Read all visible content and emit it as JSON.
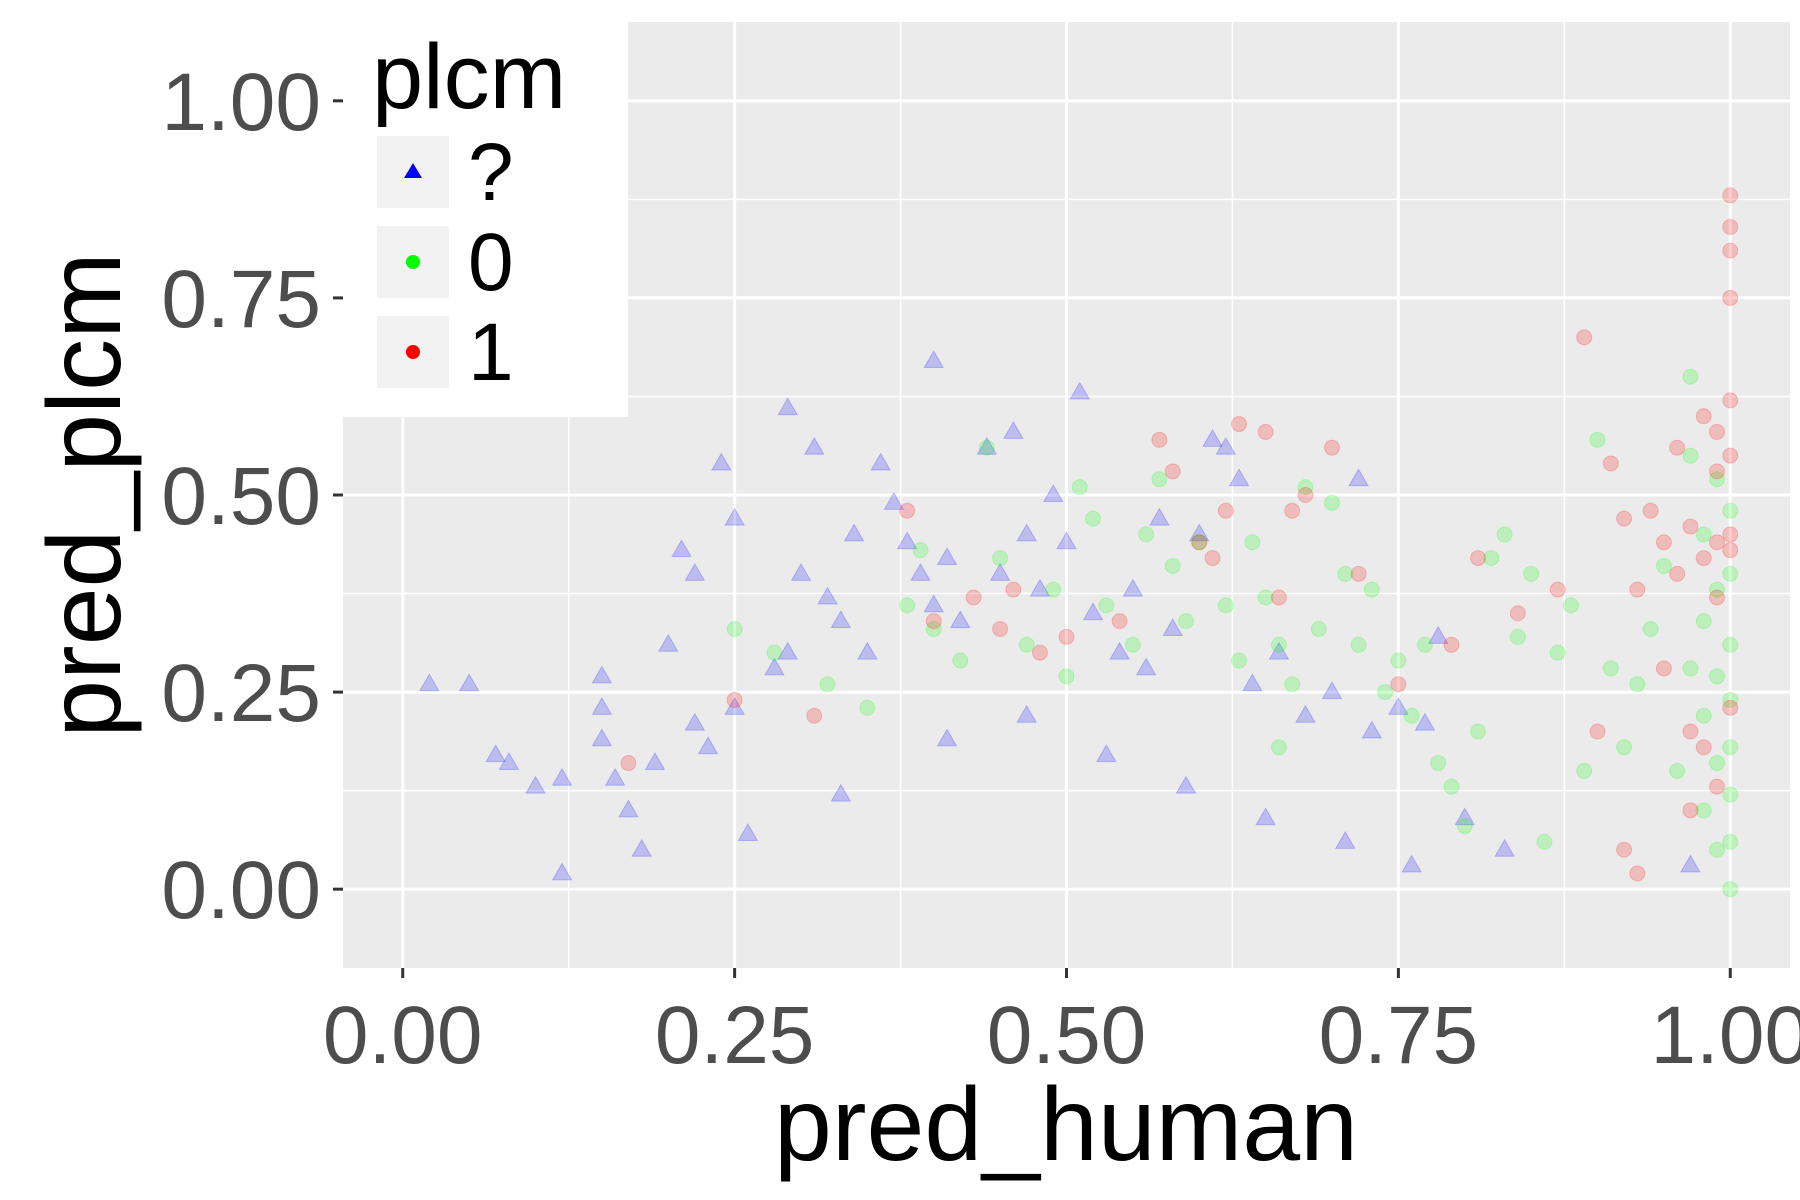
{
  "chart_data": {
    "type": "scatter",
    "title": "",
    "xlabel": "pred_human",
    "ylabel": "pred_plcm",
    "xlim": [
      -0.045,
      1.045
    ],
    "ylim": [
      -0.1,
      1.1
    ],
    "x_ticks": [
      0.0,
      0.25,
      0.5,
      0.75,
      1.0
    ],
    "y_ticks": [
      0.0,
      0.25,
      0.5,
      0.75,
      1.0
    ],
    "x_tick_labels": [
      "0.00",
      "0.25",
      "0.50",
      "0.75",
      "1.00"
    ],
    "y_tick_labels": [
      "0.00",
      "0.25",
      "0.50",
      "0.75",
      "1.00"
    ],
    "grid": true,
    "legend": {
      "title": "plcm",
      "position": "top-left",
      "entries": [
        {
          "label": "?",
          "shape": "triangle",
          "color": "#0000ff"
        },
        {
          "label": "0",
          "shape": "circle",
          "color": "#00ff00"
        },
        {
          "label": "1",
          "shape": "circle",
          "color": "#ff0000"
        }
      ]
    },
    "colors": {
      "panel": "#ebebeb",
      "grid_major": "#ffffff",
      "axis_text": "#4d4d4d",
      "title_text": "#000000"
    },
    "point_alpha": 0.2,
    "series": [
      {
        "name": "?",
        "shape": "triangle",
        "color": "#0000ff",
        "points": [
          [
            0.02,
            0.26
          ],
          [
            0.05,
            0.26
          ],
          [
            0.07,
            0.17
          ],
          [
            0.08,
            0.16
          ],
          [
            0.1,
            0.13
          ],
          [
            0.12,
            0.14
          ],
          [
            0.15,
            0.27
          ],
          [
            0.15,
            0.23
          ],
          [
            0.15,
            0.19
          ],
          [
            0.16,
            0.14
          ],
          [
            0.17,
            0.1
          ],
          [
            0.19,
            0.16
          ],
          [
            0.2,
            0.31
          ],
          [
            0.21,
            0.43
          ],
          [
            0.22,
            0.4
          ],
          [
            0.22,
            0.21
          ],
          [
            0.23,
            0.18
          ],
          [
            0.24,
            0.54
          ],
          [
            0.25,
            0.47
          ],
          [
            0.25,
            0.23
          ],
          [
            0.28,
            0.28
          ],
          [
            0.29,
            0.61
          ],
          [
            0.29,
            0.3
          ],
          [
            0.3,
            0.4
          ],
          [
            0.31,
            0.56
          ],
          [
            0.32,
            0.37
          ],
          [
            0.33,
            0.34
          ],
          [
            0.34,
            0.45
          ],
          [
            0.35,
            0.3
          ],
          [
            0.36,
            0.54
          ],
          [
            0.37,
            0.49
          ],
          [
            0.38,
            0.44
          ],
          [
            0.39,
            0.4
          ],
          [
            0.4,
            0.67
          ],
          [
            0.4,
            0.36
          ],
          [
            0.41,
            0.42
          ],
          [
            0.42,
            0.34
          ],
          [
            0.44,
            0.56
          ],
          [
            0.45,
            0.4
          ],
          [
            0.46,
            0.58
          ],
          [
            0.47,
            0.45
          ],
          [
            0.48,
            0.38
          ],
          [
            0.49,
            0.5
          ],
          [
            0.5,
            0.44
          ],
          [
            0.51,
            0.63
          ],
          [
            0.52,
            0.35
          ],
          [
            0.54,
            0.3
          ],
          [
            0.55,
            0.38
          ],
          [
            0.56,
            0.28
          ],
          [
            0.57,
            0.47
          ],
          [
            0.58,
            0.33
          ],
          [
            0.6,
            0.45
          ],
          [
            0.61,
            0.57
          ],
          [
            0.62,
            0.56
          ],
          [
            0.63,
            0.52
          ],
          [
            0.64,
            0.26
          ],
          [
            0.66,
            0.3
          ],
          [
            0.68,
            0.22
          ],
          [
            0.7,
            0.25
          ],
          [
            0.72,
            0.52
          ],
          [
            0.73,
            0.2
          ],
          [
            0.75,
            0.23
          ],
          [
            0.77,
            0.21
          ],
          [
            0.78,
            0.32
          ],
          [
            0.8,
            0.09
          ],
          [
            0.83,
            0.05
          ],
          [
            0.12,
            0.02
          ],
          [
            0.18,
            0.05
          ],
          [
            0.26,
            0.07
          ],
          [
            0.33,
            0.12
          ],
          [
            0.41,
            0.19
          ],
          [
            0.47,
            0.22
          ],
          [
            0.53,
            0.17
          ],
          [
            0.59,
            0.13
          ],
          [
            0.65,
            0.09
          ],
          [
            0.71,
            0.06
          ],
          [
            0.76,
            0.03
          ],
          [
            0.97,
            0.03
          ]
        ]
      },
      {
        "name": "0",
        "shape": "circle",
        "color": "#00ff00",
        "points": [
          [
            0.25,
            0.33
          ],
          [
            0.28,
            0.3
          ],
          [
            0.32,
            0.26
          ],
          [
            0.35,
            0.23
          ],
          [
            0.38,
            0.36
          ],
          [
            0.39,
            0.43
          ],
          [
            0.4,
            0.33
          ],
          [
            0.42,
            0.29
          ],
          [
            0.44,
            0.56
          ],
          [
            0.45,
            0.42
          ],
          [
            0.47,
            0.31
          ],
          [
            0.49,
            0.38
          ],
          [
            0.5,
            0.27
          ],
          [
            0.51,
            0.51
          ],
          [
            0.52,
            0.47
          ],
          [
            0.53,
            0.36
          ],
          [
            0.55,
            0.31
          ],
          [
            0.56,
            0.45
          ],
          [
            0.57,
            0.52
          ],
          [
            0.58,
            0.41
          ],
          [
            0.59,
            0.34
          ],
          [
            0.6,
            0.44
          ],
          [
            0.62,
            0.36
          ],
          [
            0.63,
            0.29
          ],
          [
            0.64,
            0.44
          ],
          [
            0.65,
            0.37
          ],
          [
            0.66,
            0.31
          ],
          [
            0.67,
            0.26
          ],
          [
            0.68,
            0.51
          ],
          [
            0.69,
            0.33
          ],
          [
            0.7,
            0.49
          ],
          [
            0.71,
            0.4
          ],
          [
            0.72,
            0.31
          ],
          [
            0.73,
            0.38
          ],
          [
            0.74,
            0.25
          ],
          [
            0.75,
            0.29
          ],
          [
            0.76,
            0.22
          ],
          [
            0.77,
            0.31
          ],
          [
            0.79,
            0.13
          ],
          [
            0.8,
            0.08
          ],
          [
            0.81,
            0.2
          ],
          [
            0.82,
            0.42
          ],
          [
            0.83,
            0.45
          ],
          [
            0.84,
            0.32
          ],
          [
            0.85,
            0.4
          ],
          [
            0.87,
            0.3
          ],
          [
            0.88,
            0.36
          ],
          [
            0.89,
            0.15
          ],
          [
            0.9,
            0.57
          ],
          [
            0.91,
            0.28
          ],
          [
            0.92,
            0.18
          ],
          [
            0.93,
            0.26
          ],
          [
            0.94,
            0.33
          ],
          [
            0.95,
            0.41
          ],
          [
            0.96,
            0.15
          ],
          [
            0.97,
            0.65
          ],
          [
            0.97,
            0.55
          ],
          [
            0.97,
            0.28
          ],
          [
            0.98,
            0.45
          ],
          [
            0.98,
            0.34
          ],
          [
            0.98,
            0.22
          ],
          [
            0.98,
            0.1
          ],
          [
            0.99,
            0.52
          ],
          [
            0.99,
            0.38
          ],
          [
            0.99,
            0.27
          ],
          [
            0.99,
            0.16
          ],
          [
            0.99,
            0.05
          ],
          [
            1.0,
            0.48
          ],
          [
            1.0,
            0.4
          ],
          [
            1.0,
            0.31
          ],
          [
            1.0,
            0.24
          ],
          [
            1.0,
            0.18
          ],
          [
            1.0,
            0.12
          ],
          [
            1.0,
            0.06
          ],
          [
            1.0,
            0.0
          ],
          [
            0.86,
            0.06
          ],
          [
            0.78,
            0.16
          ],
          [
            0.66,
            0.18
          ]
        ]
      },
      {
        "name": "1",
        "shape": "circle",
        "color": "#ff0000",
        "points": [
          [
            0.17,
            0.16
          ],
          [
            0.25,
            0.24
          ],
          [
            0.31,
            0.22
          ],
          [
            0.38,
            0.48
          ],
          [
            0.4,
            0.34
          ],
          [
            0.43,
            0.37
          ],
          [
            0.45,
            0.33
          ],
          [
            0.46,
            0.38
          ],
          [
            0.48,
            0.3
          ],
          [
            0.5,
            0.32
          ],
          [
            0.54,
            0.34
          ],
          [
            0.57,
            0.57
          ],
          [
            0.58,
            0.53
          ],
          [
            0.6,
            0.44
          ],
          [
            0.61,
            0.42
          ],
          [
            0.62,
            0.48
          ],
          [
            0.63,
            0.59
          ],
          [
            0.65,
            0.58
          ],
          [
            0.66,
            0.37
          ],
          [
            0.67,
            0.48
          ],
          [
            0.68,
            0.5
          ],
          [
            0.7,
            0.56
          ],
          [
            0.72,
            0.4
          ],
          [
            0.75,
            0.26
          ],
          [
            0.79,
            0.31
          ],
          [
            0.81,
            0.42
          ],
          [
            0.84,
            0.35
          ],
          [
            0.87,
            0.38
          ],
          [
            0.89,
            0.7
          ],
          [
            0.9,
            0.2
          ],
          [
            0.91,
            0.54
          ],
          [
            0.92,
            0.47
          ],
          [
            0.93,
            0.38
          ],
          [
            0.94,
            0.48
          ],
          [
            0.95,
            0.44
          ],
          [
            0.95,
            0.28
          ],
          [
            0.96,
            0.56
          ],
          [
            0.96,
            0.4
          ],
          [
            0.97,
            0.46
          ],
          [
            0.97,
            0.2
          ],
          [
            0.98,
            0.6
          ],
          [
            0.98,
            0.42
          ],
          [
            0.98,
            0.18
          ],
          [
            0.99,
            0.58
          ],
          [
            0.99,
            0.53
          ],
          [
            0.99,
            0.44
          ],
          [
            0.99,
            0.37
          ],
          [
            1.0,
            0.88
          ],
          [
            1.0,
            0.84
          ],
          [
            1.0,
            0.81
          ],
          [
            1.0,
            0.75
          ],
          [
            1.0,
            0.62
          ],
          [
            1.0,
            0.55
          ],
          [
            1.0,
            0.45
          ],
          [
            1.0,
            0.43
          ],
          [
            1.0,
            0.23
          ],
          [
            0.93,
            0.02
          ],
          [
            0.92,
            0.05
          ],
          [
            0.97,
            0.1
          ],
          [
            0.99,
            0.13
          ]
        ]
      }
    ]
  }
}
